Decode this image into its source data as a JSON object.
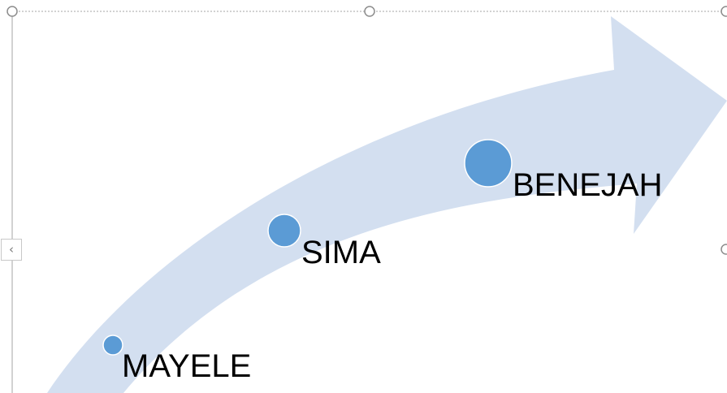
{
  "diagram": {
    "type": "upward-arrow-timeline",
    "arrow_color": "#d3dff0",
    "dot_color": "#5b9bd5",
    "dot_border_color": "#ffffff",
    "selection_color": "#a6a6a6",
    "milestones": [
      {
        "label": "MAYELE"
      },
      {
        "label": "SIMA"
      },
      {
        "label": "BENEJAH"
      }
    ]
  },
  "controls": {
    "collapse_tab_glyph": "‹"
  }
}
